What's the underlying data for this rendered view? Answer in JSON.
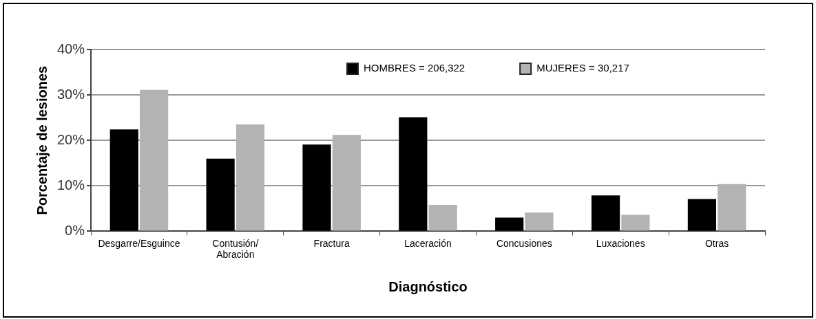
{
  "chart_data": {
    "type": "bar",
    "xlabel": "Diagnóstico",
    "ylabel": "Porcentaje de lesiones",
    "categories": [
      "Desgarre/Esguince",
      "Contusión/\nAbración",
      "Fractura",
      "Laceración",
      "Concusiones",
      "Luxaciones",
      "Otras"
    ],
    "series": [
      {
        "name": "HOMBRES = 206,322",
        "color": "#000000",
        "values": [
          22.4,
          16.0,
          19.1,
          25.1,
          3.0,
          7.9,
          7.1
        ]
      },
      {
        "name": "MUJERES = 30,217",
        "color": "#b3b3b3",
        "values": [
          31.1,
          23.5,
          21.2,
          5.8,
          4.1,
          3.6,
          10.4
        ]
      }
    ],
    "ylim": [
      0,
      40
    ],
    "yticks": [
      {
        "value": 0,
        "label": "0%"
      },
      {
        "value": 10,
        "label": "10%"
      },
      {
        "value": 20,
        "label": "20%"
      },
      {
        "value": 30,
        "label": "30%"
      },
      {
        "value": 40,
        "label": "40%"
      }
    ],
    "grid": "y",
    "legend": "top"
  }
}
